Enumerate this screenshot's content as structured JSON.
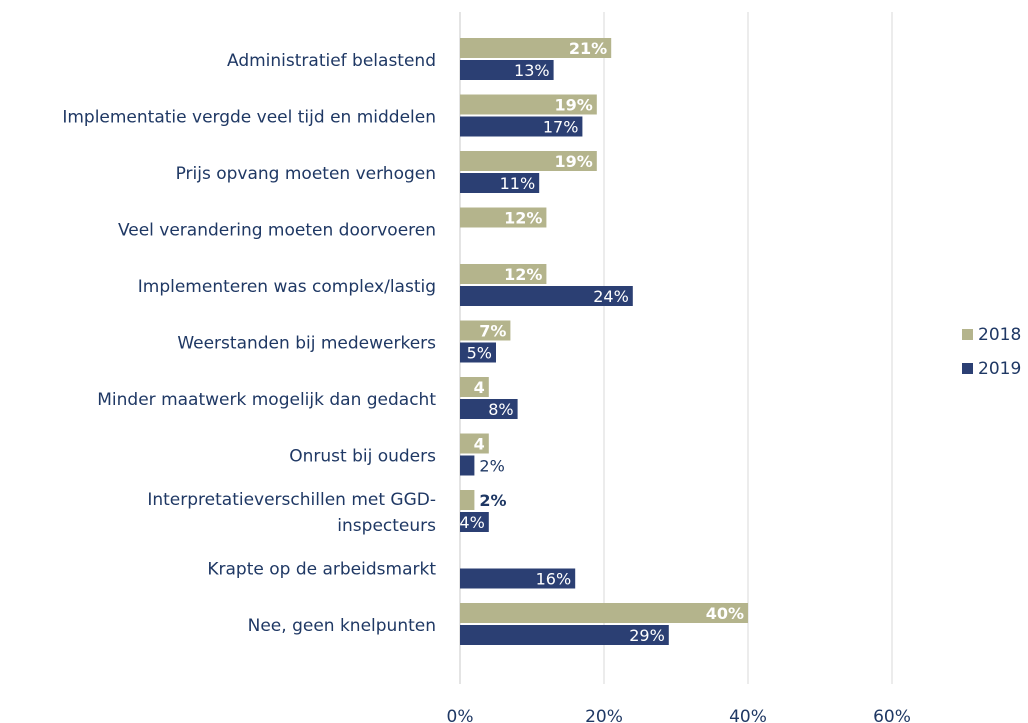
{
  "chart_data": {
    "type": "bar",
    "orientation": "horizontal",
    "categories": [
      [
        "Administratief belastend"
      ],
      [
        "Implementatie vergde veel tijd en middelen"
      ],
      [
        "Prijs opvang moeten verhogen"
      ],
      [
        "Veel verandering moeten doorvoeren"
      ],
      [
        "Implementeren was complex/lastig"
      ],
      [
        "Weerstanden bij medewerkers"
      ],
      [
        "Minder maatwerk mogelijk dan gedacht"
      ],
      [
        "Onrust bij ouders"
      ],
      [
        "Interpretatieverschillen met GGD-",
        "inspecteurs"
      ],
      [
        "Krapte op de arbeidsmarkt"
      ],
      [
        "Nee, geen knelpunten"
      ]
    ],
    "series": [
      {
        "name": "2018",
        "color": "#b4b48c",
        "values": [
          21,
          19,
          19,
          12,
          12,
          7,
          4,
          4,
          2,
          null,
          40
        ],
        "labels": [
          "21%",
          "19%",
          "19%",
          "12%",
          "12%",
          "7%",
          "4",
          "4",
          "2%",
          "",
          "40%"
        ]
      },
      {
        "name": "2019",
        "color": "#2b3f73",
        "values": [
          13,
          17,
          11,
          null,
          24,
          5,
          8,
          2,
          4,
          16,
          29
        ],
        "labels": [
          "13%",
          "17%",
          "11%",
          "",
          "24%",
          "5%",
          "8%",
          "2%",
          "4%",
          "16%",
          "29%"
        ]
      }
    ],
    "xlim": [
      0,
      60
    ],
    "x_ticks": [
      "0%",
      "20%",
      "40%",
      "60%"
    ],
    "x_tick_values": [
      0,
      20,
      40,
      60
    ],
    "grid": true,
    "legend_position": "right"
  }
}
